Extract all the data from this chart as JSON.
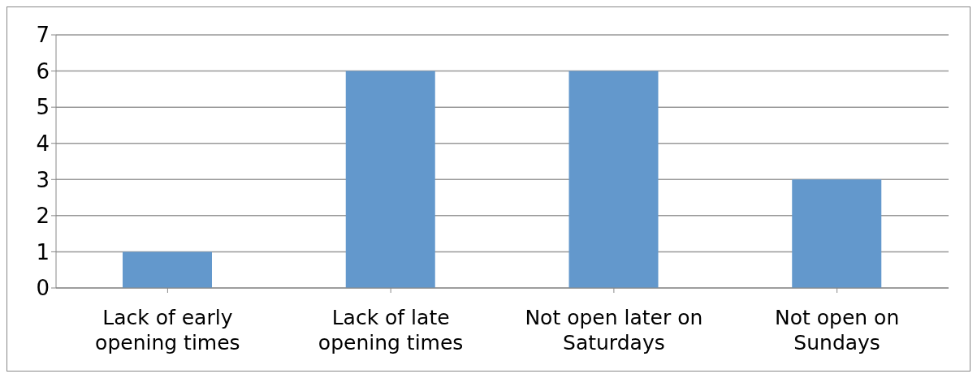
{
  "chart_data": {
    "type": "bar",
    "categories": [
      "Lack of early opening times",
      "Lack of late opening times",
      "Not open later on Saturdays",
      "Not open on Sundays"
    ],
    "values": [
      1,
      6,
      6,
      3
    ],
    "color": "#6398cc",
    "ylim": [
      0,
      7
    ],
    "yticks": [
      0,
      1,
      2,
      3,
      4,
      5,
      6,
      7
    ],
    "grid": "y"
  }
}
